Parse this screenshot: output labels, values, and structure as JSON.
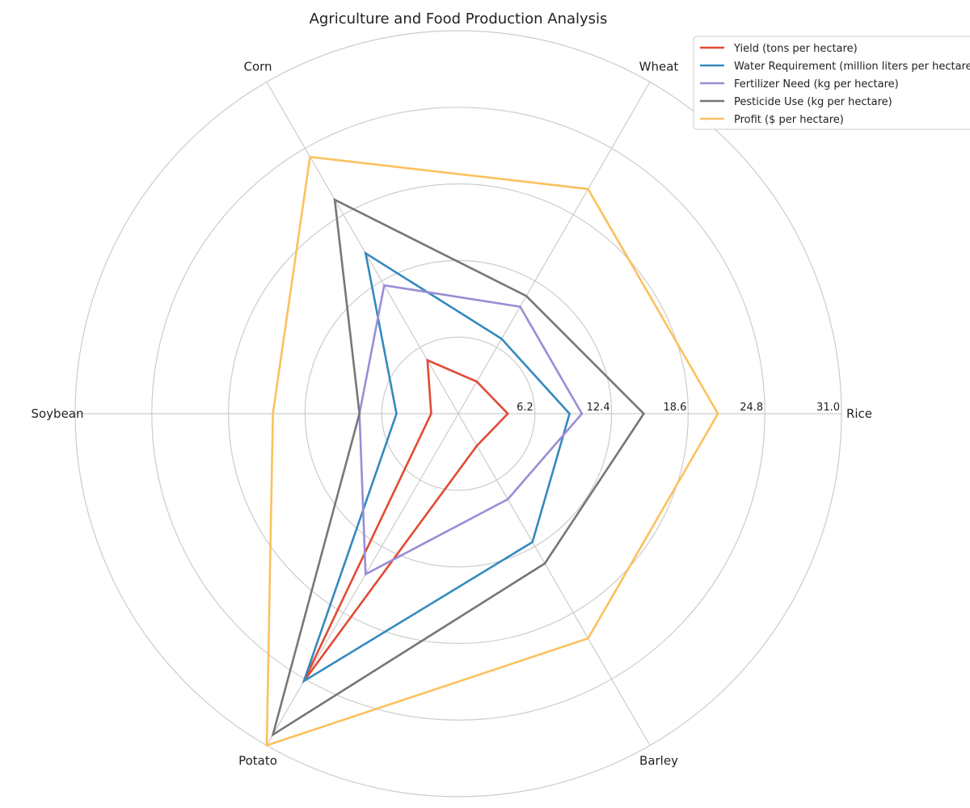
{
  "chart_data": {
    "type": "radar",
    "title": "Agriculture and Food Production Analysis",
    "categories": [
      "Rice",
      "Wheat",
      "Corn",
      "Soybean",
      "Potato",
      "Barley"
    ],
    "radial_ticks": [
      "6.2",
      "12.4",
      "18.6",
      "24.8",
      "31.0"
    ],
    "rlim": [
      0,
      31.0
    ],
    "grid": true,
    "legend_position": "top-right",
    "series": [
      {
        "name": "Yield (tons per hectare)",
        "color": "#E24A33",
        "values": [
          4.0,
          3.0,
          5.0,
          2.2,
          25.0,
          3.0
        ]
      },
      {
        "name": "Water Requirement (million liters per hectare)",
        "color": "#348ABD",
        "values": [
          9.0,
          7.0,
          15.0,
          5.0,
          25.0,
          12.0
        ]
      },
      {
        "name": "Fertilizer Need (kg per hectare)",
        "color": "#988ED5",
        "values": [
          10.0,
          10.0,
          12.0,
          8.0,
          15.0,
          8.0
        ]
      },
      {
        "name": "Pesticide Use (kg per hectare)",
        "color": "#777777",
        "values": [
          15.0,
          11.0,
          20.0,
          8.0,
          30.0,
          14.0
        ]
      },
      {
        "name": "Profit ($ per hectare)",
        "color": "#FBC15E",
        "values": [
          21.0,
          21.0,
          24.0,
          15.0,
          31.0,
          21.0
        ]
      }
    ]
  }
}
